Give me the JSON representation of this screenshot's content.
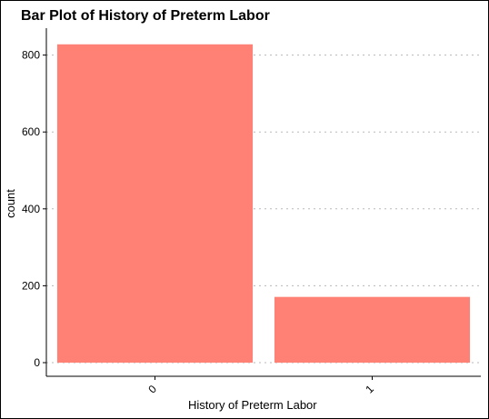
{
  "chart_data": {
    "type": "bar",
    "title": "Bar Plot of History of Preterm Labor",
    "xlabel": "History of Preterm Labor",
    "ylabel": "count",
    "categories": [
      "0",
      "1"
    ],
    "values": [
      828,
      171
    ],
    "yticks": [
      "0",
      "200",
      "400",
      "600",
      "800"
    ],
    "ylim": [
      0,
      870
    ],
    "bar_color": "#ff8075",
    "grid": "horizontal dotted",
    "legend": "none"
  }
}
